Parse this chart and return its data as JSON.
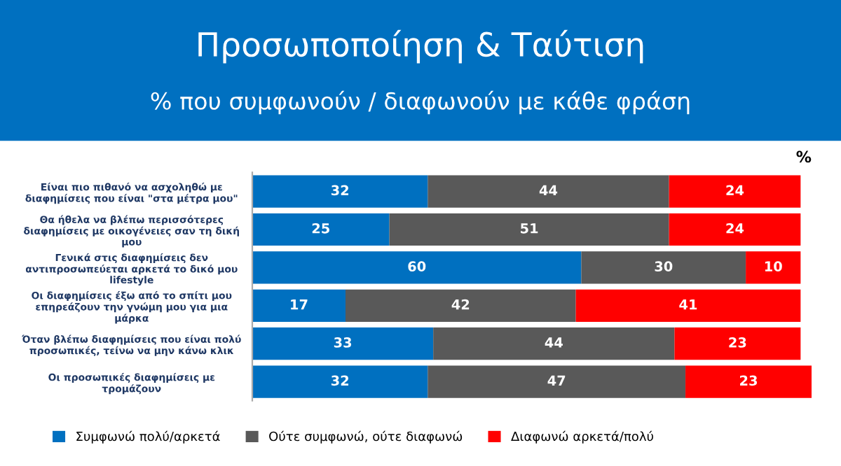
{
  "chart_data": {
    "type": "bar",
    "orientation": "horizontal",
    "stacked": true,
    "title": "Προσωποποίηση & Ταύτιση",
    "subtitle": "% που συμφωνούν / διαφωνούν με κάθε φράση",
    "annotations": [
      "%"
    ],
    "categories": [
      "Είναι πιο πιθανό να ασχοληθώ με\nδιαφημίσεις που είναι \"στα μέτρα μου\"",
      "Θα ήθελα να βλέπω περισσότερες\nδιαφημίσεις με οικογένειες σαν τη δική\nμου",
      "Γενικά στις διαφημίσεις δεν\nαντιπροσωπεύεται αρκετά το δικό μου\nlifestyle",
      "Οι διαφημίσεις έξω από το σπίτι μου\nεπηρεάζουν την γνώμη μου για μια\nμάρκα",
      "Όταν βλέπω διαφημίσεις που είναι πολύ\nπροσωπικές, τείνω να μην κάνω κλικ",
      "Οι προσωπικές διαφημίσεις με\nτρομάζουν"
    ],
    "xlim": [
      0,
      102
    ],
    "series": [
      {
        "name": "Συμφωνώ πολύ/αρκετά",
        "color": "#0070c0",
        "values": [
          32,
          25,
          60,
          17,
          33,
          32
        ]
      },
      {
        "name": "Ούτε συμφωνώ, ούτε διαφωνώ",
        "color": "#595959",
        "values": [
          44,
          51,
          30,
          42,
          44,
          47
        ]
      },
      {
        "name": "Διαφωνώ αρκετά/πολύ",
        "color": "#ff0000",
        "values": [
          24,
          24,
          10,
          41,
          23,
          23
        ]
      }
    ],
    "data_labels": true,
    "legend": "bottom",
    "grid": false
  }
}
